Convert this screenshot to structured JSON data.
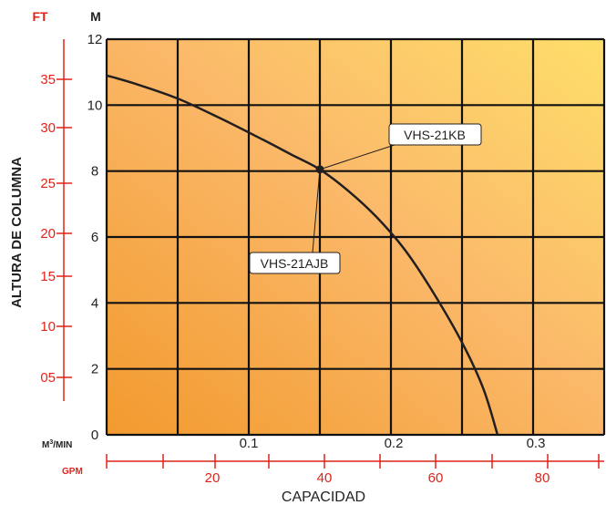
{
  "chart_data": {
    "type": "line",
    "xlabel": "CAPACIDAD",
    "ylabel": "ALTURA DE COLUMNA",
    "y_unit_left": "FT",
    "y_unit_right": "M",
    "x_unit_primary": "M³/MIN",
    "x_unit_secondary": "GPM",
    "xlim": [
      0,
      0.35
    ],
    "ylim": [
      0,
      12
    ],
    "grid": true,
    "m_ticks": [
      "0",
      "2",
      "4",
      "6",
      "8",
      "10",
      "12"
    ],
    "m3min_ticks": [
      "0.1",
      "0.2",
      "0.3"
    ],
    "ft_ticks": [
      "05",
      "10",
      "15",
      "20",
      "25",
      "30",
      "35"
    ],
    "gpm_ticks": [
      "20",
      "40",
      "60",
      "80"
    ],
    "series": [
      {
        "x": [
          0.0,
          0.02,
          0.05,
          0.08,
          0.11,
          0.13,
          0.15,
          0.17,
          0.19,
          0.21,
          0.23,
          0.25,
          0.265,
          0.275
        ],
        "y": [
          10.9,
          10.65,
          10.2,
          9.6,
          8.95,
          8.5,
          8.05,
          7.4,
          6.6,
          5.6,
          4.3,
          2.8,
          1.4,
          0.0
        ]
      }
    ],
    "operating_point": {
      "x": 0.15,
      "y": 8.05
    },
    "annotations": [
      "VHS-21KB",
      "VHS-21AJB"
    ]
  }
}
